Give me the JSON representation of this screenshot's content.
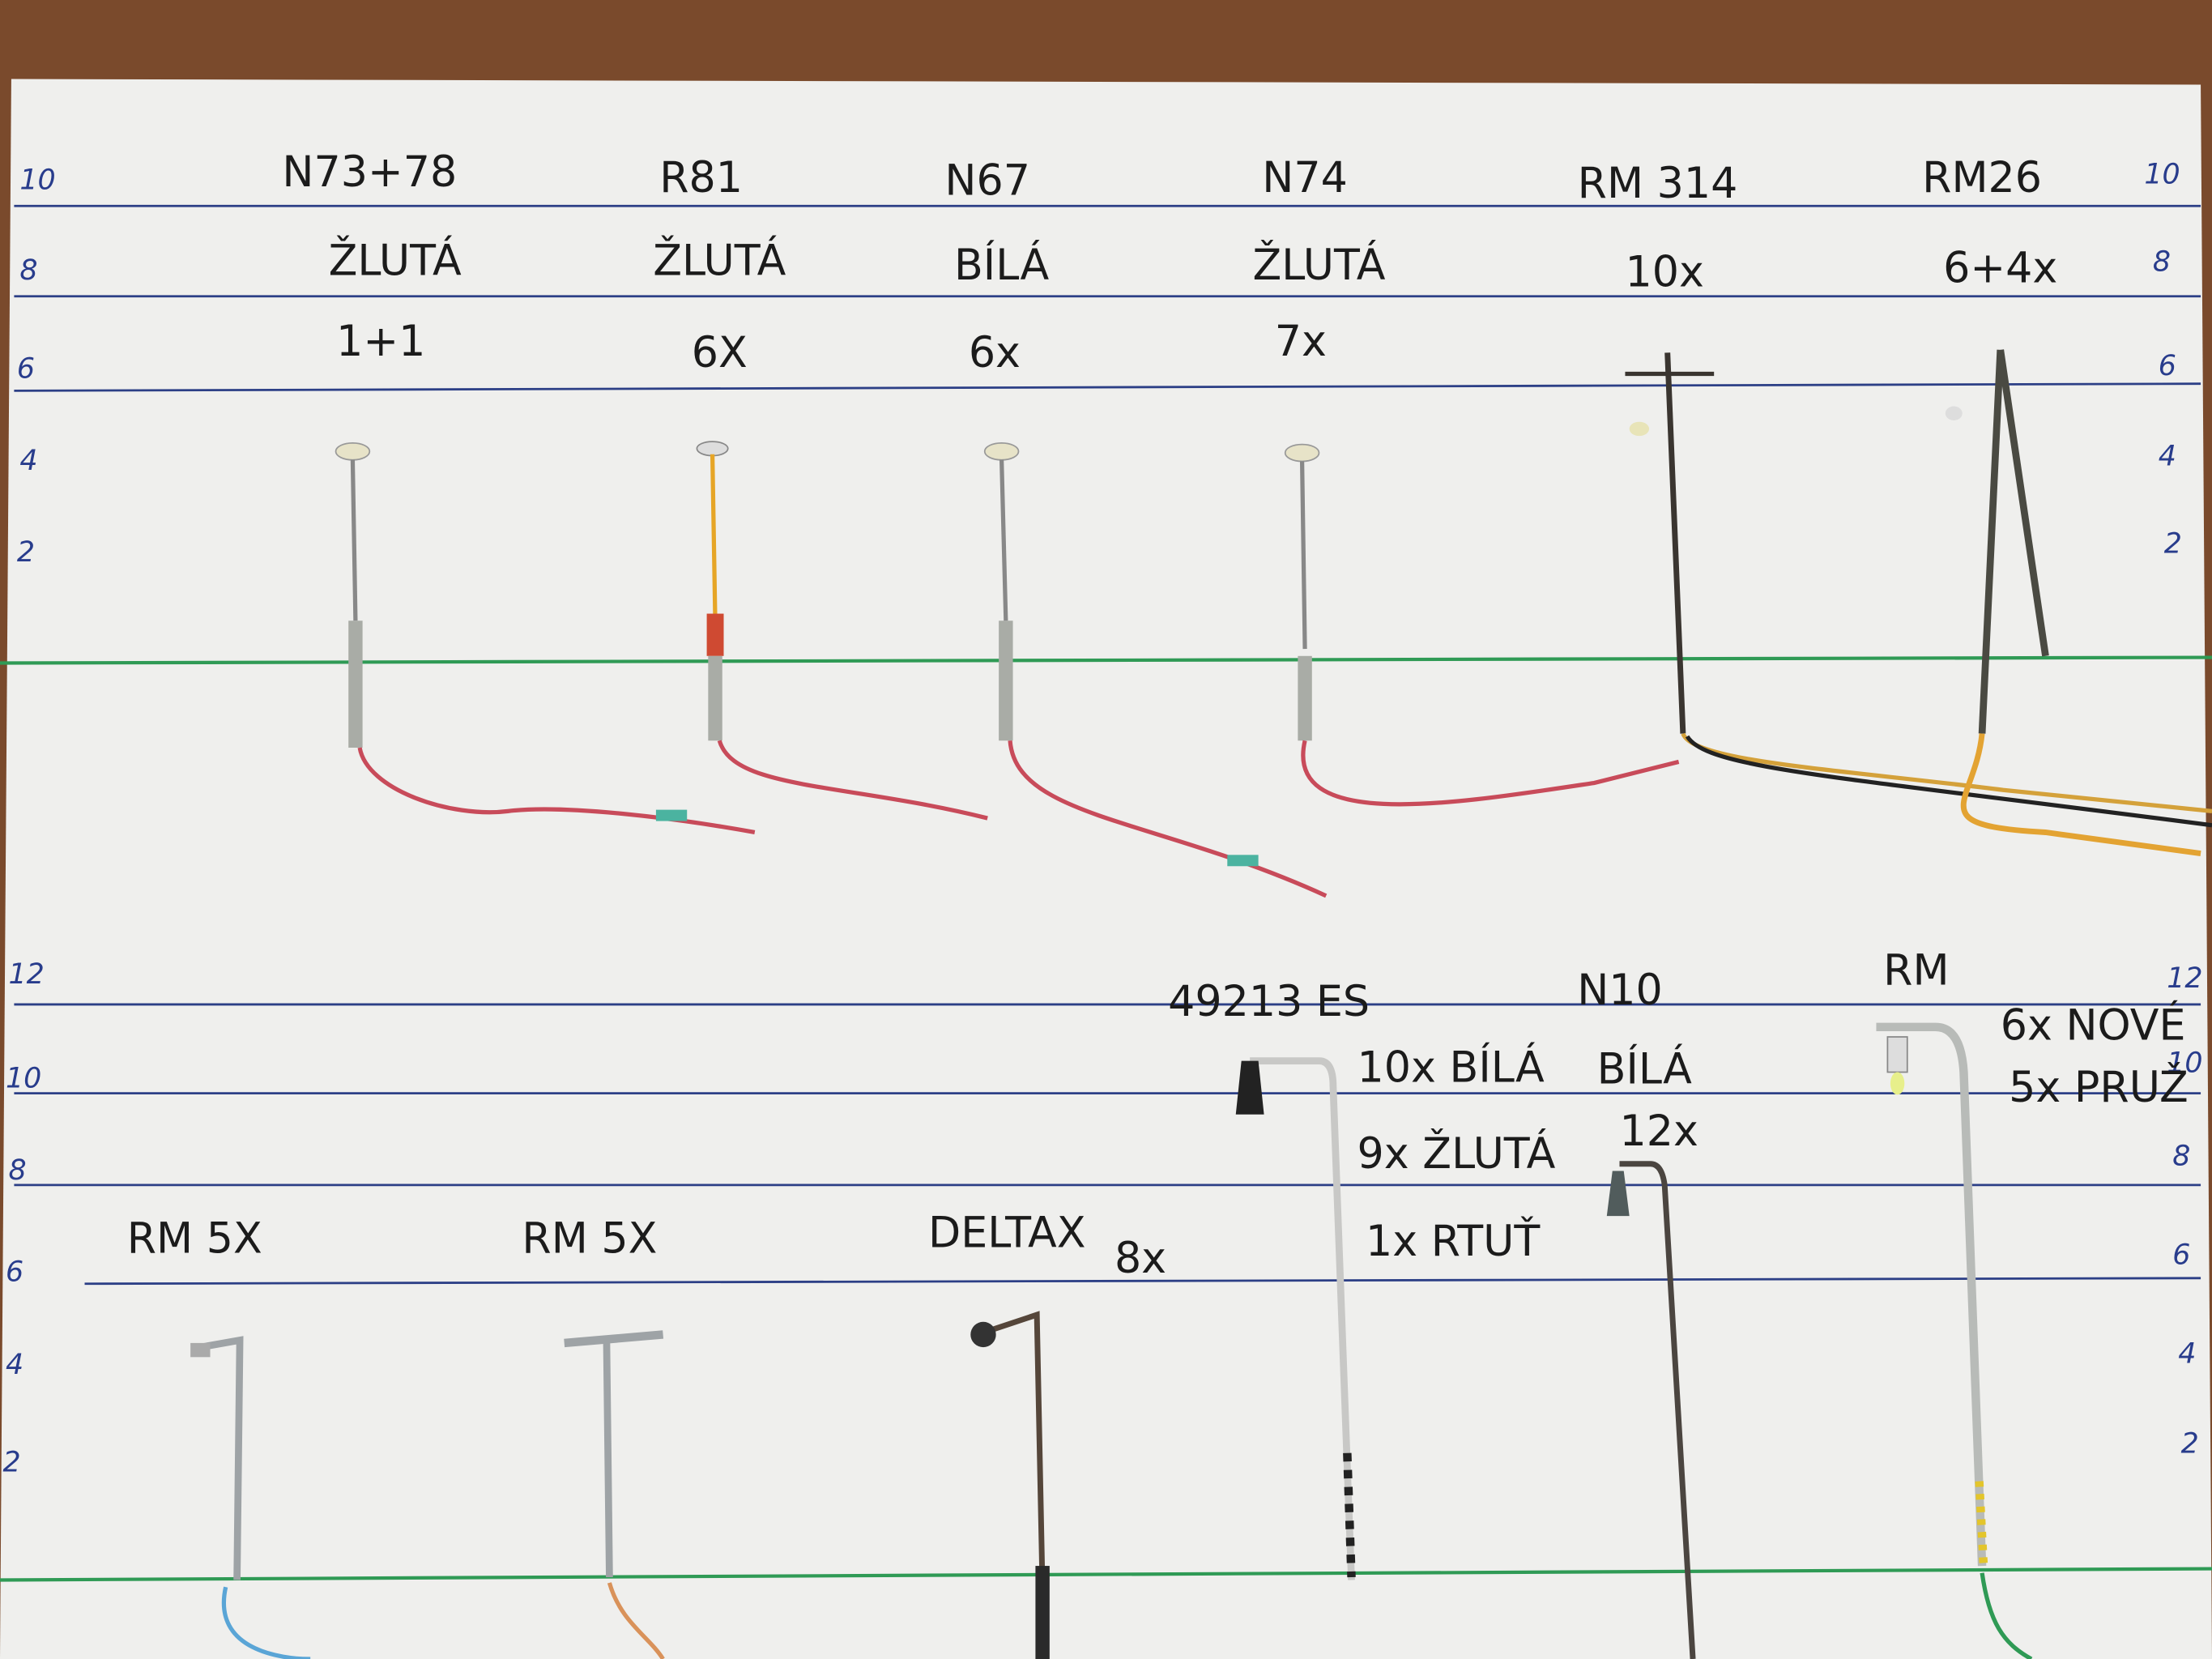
{
  "scale_left_top": [
    "10",
    "8",
    "6",
    "4",
    "2"
  ],
  "scale_right_top": [
    "10",
    "8",
    "6",
    "4",
    "2"
  ],
  "scale_left_bottom": [
    "12",
    "10",
    "8",
    "6",
    "4",
    "2"
  ],
  "scale_right_bottom": [
    "12",
    "10",
    "8",
    "6",
    "4",
    "2"
  ],
  "top_row": [
    {
      "model": "N73+78",
      "color": "ŽLUTÁ",
      "count": "1+1"
    },
    {
      "model": "R81",
      "color": "ŽLUTÁ",
      "count": "6X"
    },
    {
      "model": "N67",
      "color": "BÍLÁ",
      "count": "6x"
    },
    {
      "model": "N74",
      "color": "ŽLUTÁ",
      "count": "7x"
    },
    {
      "model": "RM 314",
      "color": "10x",
      "count": ""
    },
    {
      "model": "RM26",
      "color": "6+4x",
      "count": ""
    }
  ],
  "bottom_row": {
    "rm1": "RM 5X",
    "rm2": "RM 5X",
    "deltax": "DELTAX",
    "deltax_count": "8x",
    "es_model": "49213 ES",
    "es_white": "10x BÍLÁ",
    "es_yellow": "9x ŽLUTÁ",
    "es_mercury": "1x RTUŤ",
    "n10_model": "N10",
    "n10_color": "BÍLÁ",
    "n10_count": "12x",
    "rm_model": "RM",
    "rm_new": "6x NOVÉ",
    "rm_used": "5x PRUŽ"
  },
  "colors": {
    "wood": "#7a4a2c",
    "paper": "#eeeeec",
    "ruled_line": "#2c3f86",
    "base_line": "#2f9a55"
  }
}
